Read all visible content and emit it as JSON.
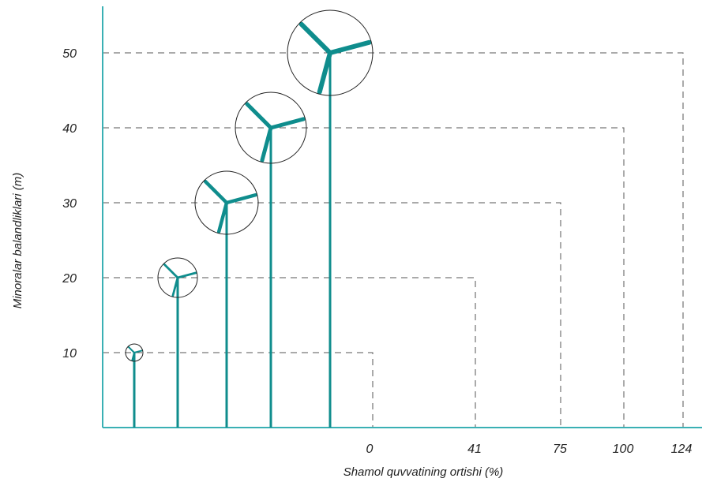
{
  "diagram": {
    "ylabel": "Minoralar balandliklari (m)",
    "xlabel": "Shamol quvvatining ortishi (%)",
    "colors": {
      "axis": "#3ab0b4",
      "turbine": "#0f8d8d",
      "guide": "#555555",
      "rotor": "#222222"
    },
    "turbines": [
      {
        "height_label": "10",
        "height_m": 10,
        "gain_label": "0",
        "gain_pct": 0
      },
      {
        "height_label": "20",
        "height_m": 20,
        "gain_label": "41",
        "gain_pct": 41
      },
      {
        "height_label": "30",
        "height_m": 30,
        "gain_label": "75",
        "gain_pct": 75
      },
      {
        "height_label": "40",
        "height_m": 40,
        "gain_label": "100",
        "gain_pct": 100
      },
      {
        "height_label": "50",
        "height_m": 50,
        "gain_label": "124",
        "gain_pct": 124
      }
    ]
  }
}
